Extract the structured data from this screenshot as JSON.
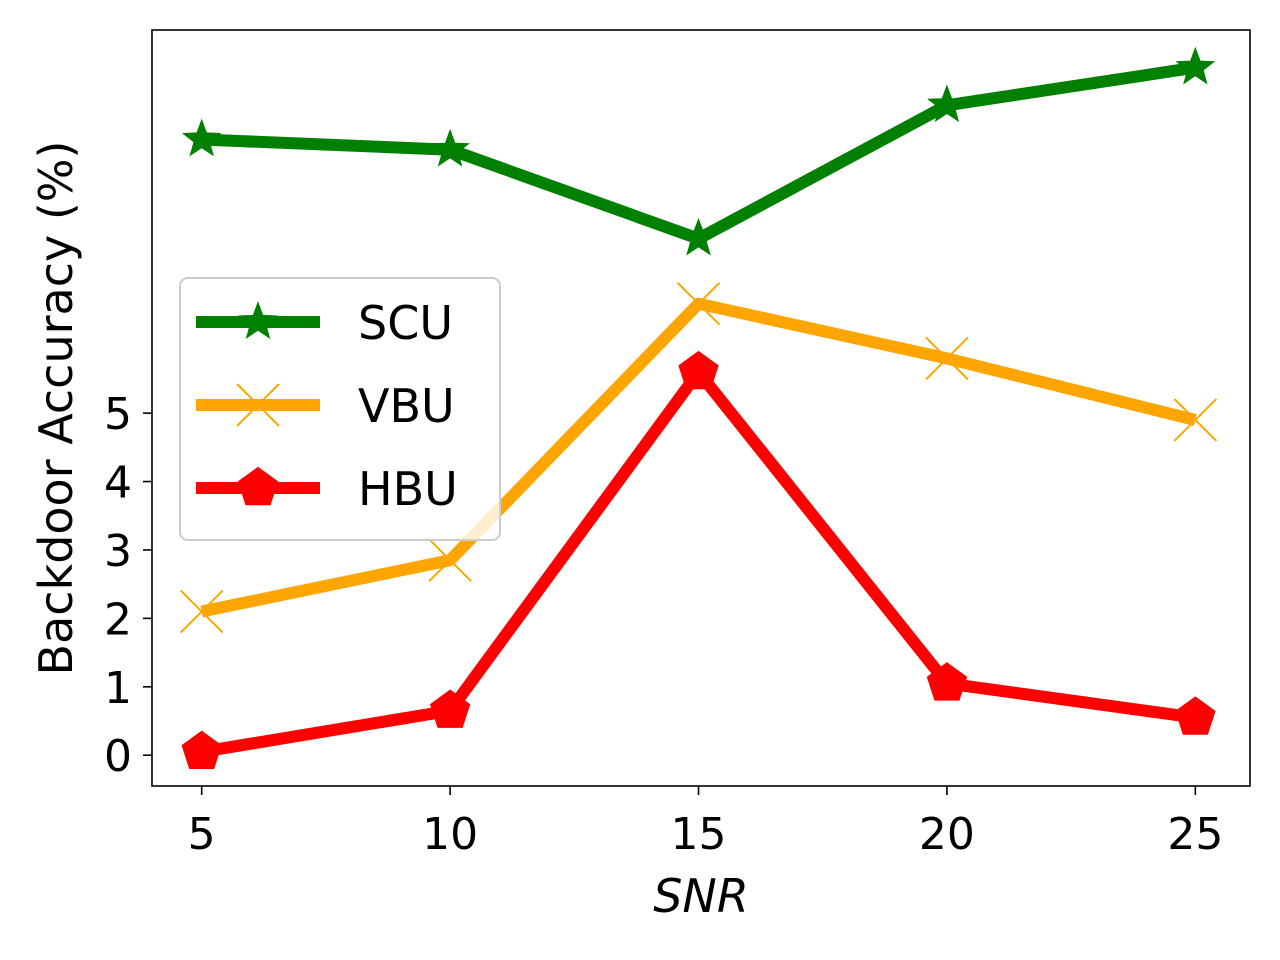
{
  "chart_data": {
    "type": "line",
    "xlabel": "SNR",
    "ylabel": "Backdoor Accuracy (%)",
    "x": [
      5,
      10,
      15,
      20,
      25
    ],
    "xticks": [
      "5",
      "10",
      "15",
      "20",
      "25"
    ],
    "yticks": [
      "0",
      "1",
      "2",
      "3",
      "4",
      "5"
    ],
    "xlim": [
      4,
      26.1
    ],
    "ylim": [
      -0.45,
      10.6
    ],
    "grid": false,
    "legend_position": "center-left",
    "series": [
      {
        "name": "SCU",
        "color": "#008000",
        "marker": "star",
        "values": [
          9.0,
          8.85,
          7.55,
          9.5,
          10.05
        ]
      },
      {
        "name": "VBU",
        "color": "#ffa500",
        "marker": "x",
        "values": [
          2.1,
          2.85,
          6.6,
          5.8,
          4.9
        ]
      },
      {
        "name": "HBU",
        "color": "#ff0000",
        "marker": "pentagon",
        "values": [
          0.05,
          0.65,
          5.6,
          1.05,
          0.55
        ]
      }
    ]
  }
}
